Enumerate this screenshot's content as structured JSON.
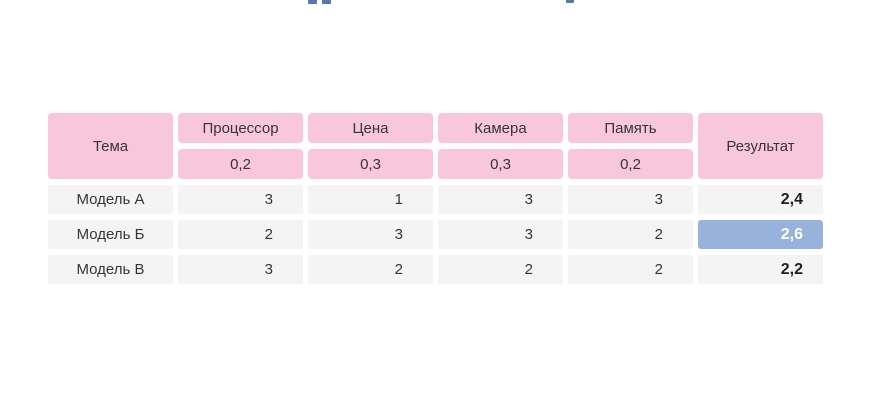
{
  "colors": {
    "header_pink": "#F9C7DB",
    "row_gray": "#F4F4F4",
    "highlight_blue": "#97B3DC",
    "highlight_text": "#FFFFFF",
    "body_text": "#363636",
    "result_text": "#1F1F1F",
    "title_fragment_blue": "#5578AD"
  },
  "table": {
    "topic_header": "Тема",
    "result_header": "Результат",
    "criteria": [
      {
        "label": "Процессор",
        "weight": "0,2"
      },
      {
        "label": "Цена",
        "weight": "0,3"
      },
      {
        "label": "Камера",
        "weight": "0,3"
      },
      {
        "label": "Память",
        "weight": "0,2"
      }
    ],
    "rows": [
      {
        "label": "Модель А",
        "values": [
          "3",
          "1",
          "3",
          "3"
        ],
        "result": "2,4"
      },
      {
        "label": "Модель Б",
        "values": [
          "2",
          "3",
          "3",
          "2"
        ],
        "result": "2,6"
      },
      {
        "label": "Модель В",
        "values": [
          "3",
          "2",
          "2",
          "2"
        ],
        "result": "2,2"
      }
    ]
  },
  "chart_data": {
    "type": "table",
    "columns": [
      "Тема",
      "Процессор",
      "Цена",
      "Камера",
      "Память",
      "Результат"
    ],
    "weights": [
      0.2,
      0.3,
      0.3,
      0.2
    ],
    "rows": [
      {
        "topic": "Модель А",
        "scores": [
          3,
          1,
          3,
          3
        ],
        "result": 2.4
      },
      {
        "topic": "Модель Б",
        "scores": [
          2,
          3,
          3,
          2
        ],
        "result": 2.6
      },
      {
        "topic": "Модель В",
        "scores": [
          3,
          2,
          2,
          2
        ],
        "result": 2.2
      }
    ],
    "highlighted_row": "Модель Б",
    "legend_position": "none",
    "grid": false
  }
}
